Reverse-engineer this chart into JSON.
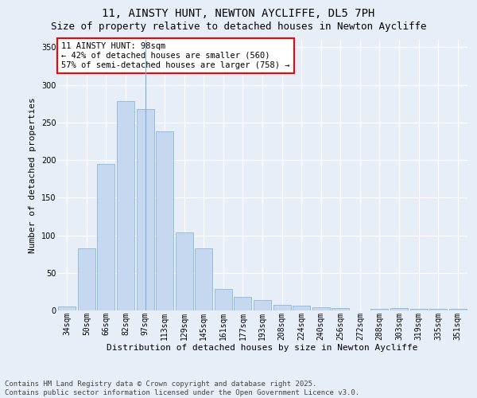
{
  "title1": "11, AINSTY HUNT, NEWTON AYCLIFFE, DL5 7PH",
  "title2": "Size of property relative to detached houses in Newton Aycliffe",
  "xlabel": "Distribution of detached houses by size in Newton Aycliffe",
  "ylabel": "Number of detached properties",
  "categories": [
    "34sqm",
    "50sqm",
    "66sqm",
    "82sqm",
    "97sqm",
    "113sqm",
    "129sqm",
    "145sqm",
    "161sqm",
    "177sqm",
    "193sqm",
    "208sqm",
    "224sqm",
    "240sqm",
    "256sqm",
    "272sqm",
    "288sqm",
    "303sqm",
    "319sqm",
    "335sqm",
    "351sqm"
  ],
  "values": [
    5,
    83,
    195,
    278,
    268,
    238,
    104,
    83,
    29,
    18,
    14,
    7,
    6,
    4,
    3,
    0,
    2,
    3,
    2,
    2,
    2
  ],
  "bar_color": "#c5d8f0",
  "bar_edge_color": "#7bafd4",
  "highlight_bar_index": 4,
  "annotation_box_text": "11 AINSTY HUNT: 98sqm\n← 42% of detached houses are smaller (560)\n57% of semi-detached houses are larger (758) →",
  "ylim": [
    0,
    360
  ],
  "yticks": [
    0,
    50,
    100,
    150,
    200,
    250,
    300,
    350
  ],
  "bg_color": "#e8eef8",
  "plot_bg_color": "#e8eef8",
  "grid_color": "#ffffff",
  "footer_text": "Contains HM Land Registry data © Crown copyright and database right 2025.\nContains public sector information licensed under the Open Government Licence v3.0.",
  "title1_fontsize": 10,
  "title2_fontsize": 9,
  "xlabel_fontsize": 8,
  "ylabel_fontsize": 8,
  "tick_fontsize": 7,
  "annotation_fontsize": 7.5,
  "footer_fontsize": 6.5
}
